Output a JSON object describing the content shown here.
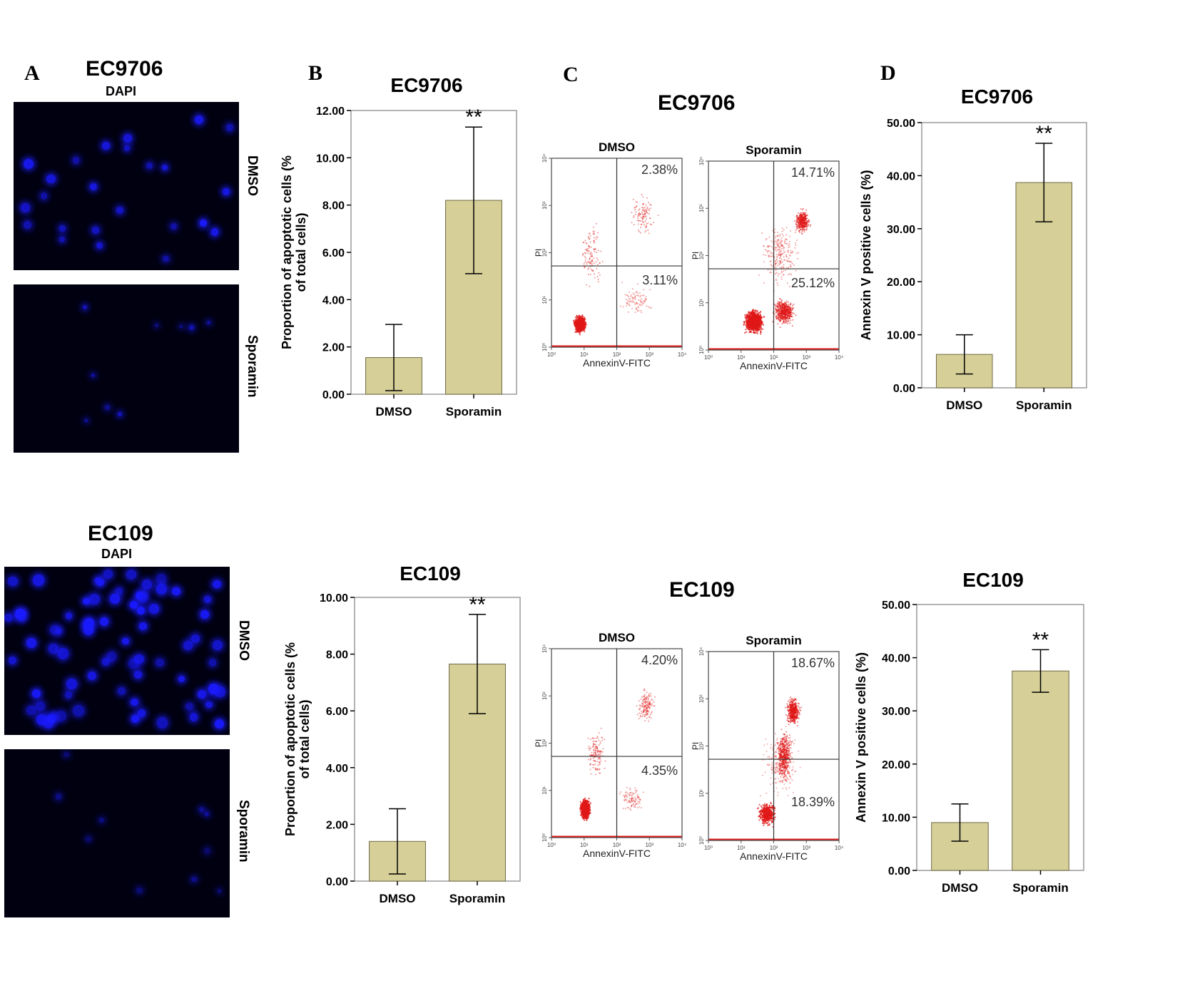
{
  "panel_letters": [
    "A",
    "B",
    "C",
    "D"
  ],
  "dapi": {
    "rows": [
      {
        "title": "EC9706",
        "subtitle": "DAPI",
        "conditions": [
          "DMSO",
          "Sporamin"
        ]
      },
      {
        "title": "EC109",
        "subtitle": "DAPI",
        "conditions": [
          "DMSO",
          "Sporamin"
        ]
      }
    ]
  },
  "chart_data": [
    {
      "id": "B-EC9706",
      "type": "bar",
      "title": "EC9706",
      "ylabel": "Proportion of apoptotic cells (% of total cells)",
      "categories": [
        "DMSO",
        "Sporamin"
      ],
      "values": [
        1.55,
        8.2
      ],
      "error": [
        1.4,
        3.1
      ],
      "ylim": [
        0,
        12
      ],
      "yticks": [
        "0.00",
        "2.00",
        "4.00",
        "6.00",
        "8.00",
        "10.00",
        "12.00"
      ],
      "significance": "**",
      "color": "#d6cf98"
    },
    {
      "id": "B-EC109",
      "type": "bar",
      "title": "EC109",
      "ylabel": "Proportion of apoptotic cells (% of total cells)",
      "categories": [
        "DMSO",
        "Sporamin"
      ],
      "values": [
        1.4,
        7.65
      ],
      "error": [
        1.15,
        1.75
      ],
      "ylim": [
        0,
        10
      ],
      "yticks": [
        "0.00",
        "2.00",
        "4.00",
        "6.00",
        "8.00",
        "10.00"
      ],
      "significance": "**",
      "color": "#d6cf98"
    },
    {
      "id": "D-EC9706",
      "type": "bar",
      "title": "EC9706",
      "ylabel": "Annexin V positive cells (%)",
      "categories": [
        "DMSO",
        "Sporamin"
      ],
      "values": [
        6.3,
        38.7
      ],
      "error": [
        3.7,
        7.4
      ],
      "ylim": [
        0,
        50
      ],
      "yticks": [
        "0.00",
        "10.00",
        "20.00",
        "30.00",
        "40.00",
        "50.00"
      ],
      "significance": "**",
      "color": "#d6cf98"
    },
    {
      "id": "D-EC109",
      "type": "bar",
      "title": "EC109",
      "ylabel": "Annexin V positive cells (%)",
      "categories": [
        "DMSO",
        "Sporamin"
      ],
      "values": [
        9.0,
        37.5
      ],
      "error": [
        3.5,
        4.0
      ],
      "ylim": [
        0,
        50
      ],
      "yticks": [
        "0.00",
        "10.00",
        "20.00",
        "30.00",
        "40.00",
        "50.00"
      ],
      "significance": "**",
      "color": "#d6cf98"
    },
    {
      "id": "C-EC9706",
      "type": "scatter",
      "title": "EC9706",
      "xlabel": "AnnexinV-FITC",
      "ylabel": "PI",
      "plots": [
        {
          "condition": "DMSO",
          "quadrants": {
            "upper_right": "2.38%",
            "lower_right": "3.11%"
          }
        },
        {
          "condition": "Sporamin",
          "quadrants": {
            "upper_right": "14.71%",
            "lower_right": "25.12%"
          }
        }
      ]
    },
    {
      "id": "C-EC109",
      "type": "scatter",
      "title": "EC109",
      "xlabel": "AnnexinV-FITC",
      "ylabel": "PI",
      "plots": [
        {
          "condition": "DMSO",
          "quadrants": {
            "upper_right": "4.20%",
            "lower_right": "4.35%"
          }
        },
        {
          "condition": "Sporamin",
          "quadrants": {
            "upper_right": "18.67%",
            "lower_right": "18.39%"
          }
        }
      ]
    }
  ],
  "flow_axis": {
    "tick_labels": [
      "10⁰",
      "10¹",
      "10²",
      "10³",
      "10⁴"
    ]
  },
  "colors": {
    "bar": "#d6cf98",
    "dapi": "#1a1aff",
    "dots": "#e01818"
  }
}
